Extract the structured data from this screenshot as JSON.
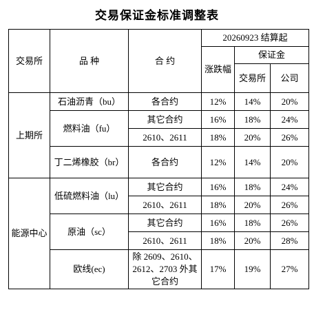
{
  "title": "交易保证金标准调整表",
  "header": {
    "exchange": "交易所",
    "product": "品 种",
    "contract": "合 约",
    "date": "20260923 结算起",
    "limit": "涨跌幅",
    "margin": "保证金",
    "margin_exchange": "交易所",
    "margin_company": "公司"
  },
  "groups": [
    {
      "exchange": "上期所",
      "products": [
        {
          "name": "石油沥青（bu）",
          "rows": [
            [
              "各合约",
              "12%",
              "14%",
              "20%"
            ]
          ]
        },
        {
          "name": "燃料油（fu）",
          "rows": [
            [
              "其它合约",
              "16%",
              "18%",
              "24%"
            ],
            [
              "2610、2611",
              "18%",
              "20%",
              "26%"
            ]
          ]
        },
        {
          "name": "丁二烯橡胶（br）",
          "rows": [
            [
              "各合约",
              "12%",
              "14%",
              "20%"
            ]
          ]
        }
      ]
    },
    {
      "exchange": "能源中心",
      "products": [
        {
          "name": "低硫燃料油（lu）",
          "rows": [
            [
              "其它合约",
              "16%",
              "18%",
              "24%"
            ],
            [
              "2610、2611",
              "18%",
              "20%",
              "26%"
            ]
          ]
        },
        {
          "name": "原油（sc）",
          "rows": [
            [
              "其它合约",
              "16%",
              "18%",
              "26%"
            ],
            [
              "2610、2611",
              "18%",
              "20%",
              "28%"
            ]
          ]
        },
        {
          "name": "欧线(ec)",
          "rows": [
            [
              "除 2609、2610、2612、2703 外其它合约",
              "17%",
              "19%",
              "27%"
            ]
          ]
        }
      ]
    }
  ]
}
